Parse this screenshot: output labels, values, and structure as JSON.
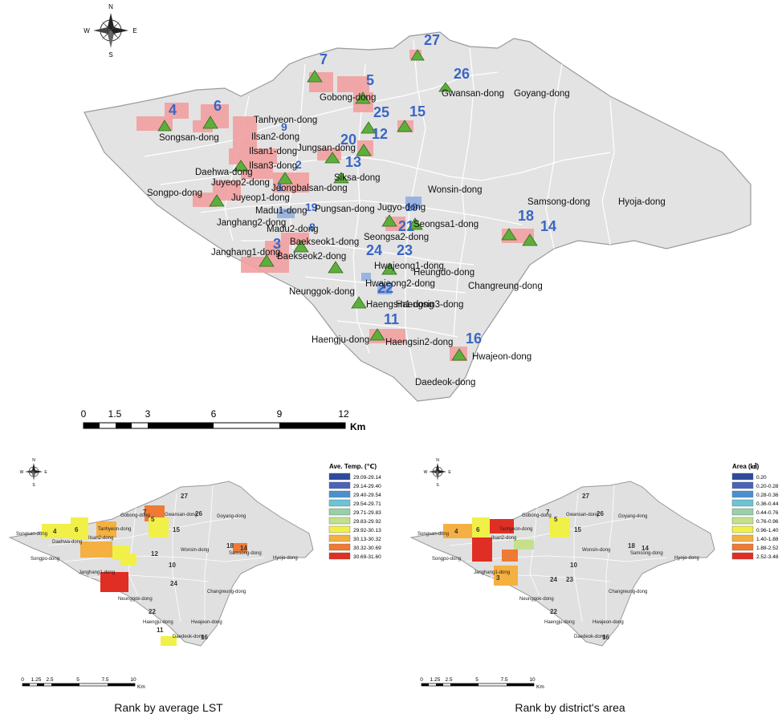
{
  "main_map": {
    "compass": {
      "n": "N",
      "s": "S",
      "e": "E",
      "w": "W"
    },
    "districts": [
      {
        "name": "Songsan-dong",
        "rank": "4"
      },
      {
        "name": "Tanhyeon-dong",
        "rank": "6"
      },
      {
        "name": "Ilsan2-dong",
        "rank": "9"
      },
      {
        "name": "Ilsan1-dong",
        "rank": ""
      },
      {
        "name": "Daehwa-dong",
        "rank": ""
      },
      {
        "name": "Ilsan3-dong",
        "rank": "2"
      },
      {
        "name": "Juyeop2-dong",
        "rank": ""
      },
      {
        "name": "Songpo-dong",
        "rank": ""
      },
      {
        "name": "Juyeop1-dong",
        "rank": ""
      },
      {
        "name": "Jeongbalsan-dong",
        "rank": "1"
      },
      {
        "name": "Janghang2-dong",
        "rank": ""
      },
      {
        "name": "Madu1-dong",
        "rank": "8"
      },
      {
        "name": "Madu2-dong",
        "rank": ""
      },
      {
        "name": "Janghang1-dong",
        "rank": "3"
      },
      {
        "name": "Baekseok1-dong",
        "rank": ""
      },
      {
        "name": "Baekseok2-dong",
        "rank": ""
      },
      {
        "name": "Gobong-dong",
        "rank": "7"
      },
      {
        "name": "Jungsan-dong",
        "rank": "20"
      },
      {
        "name": "Siksa-dong",
        "rank": "13"
      },
      {
        "name": "Pungsan-dong",
        "rank": "19"
      },
      {
        "name": "Jugyo-dong",
        "rank": "10"
      },
      {
        "name": "Seongsa1-dong",
        "rank": "21"
      },
      {
        "name": "Seongsa2-dong",
        "rank": "24"
      },
      {
        "name": "Hwajeong1-dong",
        "rank": "23"
      },
      {
        "name": "Hwajeong2-dong",
        "rank": ""
      },
      {
        "name": "Heungdo-dong",
        "rank": ""
      },
      {
        "name": "Neunggok-dong",
        "rank": "22"
      },
      {
        "name": "Haengsin3-dong",
        "rank": ""
      },
      {
        "name": "Haengsin1-dong",
        "rank": "11"
      },
      {
        "name": "Haengsin2-dong",
        "rank": ""
      },
      {
        "name": "Haengju-dong",
        "rank": ""
      },
      {
        "name": "Hwajeon-dong",
        "rank": "16"
      },
      {
        "name": "Daedeok-dong",
        "rank": ""
      },
      {
        "name": "Changreung-dong",
        "rank": ""
      },
      {
        "name": "Wonsin-dong",
        "rank": ""
      },
      {
        "name": "Samsong-dong",
        "rank": "18"
      },
      {
        "name": "Hyoja-dong",
        "rank": ""
      },
      {
        "name": "Gwansan-dong",
        "rank": "26"
      },
      {
        "name": "Goyang-dong",
        "rank": ""
      }
    ],
    "extra_ranks": [
      "5",
      "25",
      "12",
      "15",
      "27",
      "14"
    ],
    "scale_bar": {
      "ticks": [
        "0",
        "1.5",
        "3",
        "6",
        "9",
        "12"
      ],
      "unit": "Km"
    }
  },
  "lst_map": {
    "caption": "Rank by average LST",
    "legend_title": "Ave. Temp. (℃)",
    "legend": [
      {
        "label": "29.09-29.14",
        "color": "#2e4a9e"
      },
      {
        "label": "29.14-29.40",
        "color": "#4a62b8"
      },
      {
        "label": "29.40-29.54",
        "color": "#4a90d0"
      },
      {
        "label": "29.54-29.71",
        "color": "#6cc4d4"
      },
      {
        "label": "29.71-29.83",
        "color": "#98d0a8"
      },
      {
        "label": "29.83-29.92",
        "color": "#c4e08a"
      },
      {
        "label": "29.92-30.13",
        "color": "#f0f048"
      },
      {
        "label": "30.13-30.32",
        "color": "#f4b040"
      },
      {
        "label": "30.32-30.69",
        "color": "#ee7a34"
      },
      {
        "label": "30.69-31.60",
        "color": "#e02e24"
      }
    ],
    "scale_bar": {
      "ticks": [
        "0",
        "1.25",
        "2.5",
        "5",
        "7.5",
        "10"
      ],
      "unit": "Km"
    }
  },
  "area_map": {
    "caption": "Rank by district's area",
    "legend_title": "Area (㎢)",
    "legend": [
      {
        "label": "0.20",
        "color": "#2e4a9e"
      },
      {
        "label": "0.20-0.28",
        "color": "#4a62b8"
      },
      {
        "label": "0.28-0.36",
        "color": "#4a90d0"
      },
      {
        "label": "0.36-0.44",
        "color": "#6cc4d4"
      },
      {
        "label": "0.44-0.76",
        "color": "#98d0a8"
      },
      {
        "label": "0.76-0.96",
        "color": "#c4e08a"
      },
      {
        "label": "0.96-1.40",
        "color": "#f0f048"
      },
      {
        "label": "1.40-1.88",
        "color": "#f4b040"
      },
      {
        "label": "1.88-2.52",
        "color": "#ee7a34"
      },
      {
        "label": "2.52-3.48",
        "color": "#e02e24"
      }
    ],
    "scale_bar": {
      "ticks": [
        "0",
        "1.25",
        "2.5",
        "5",
        "7.5",
        "10"
      ],
      "unit": "Km"
    }
  }
}
